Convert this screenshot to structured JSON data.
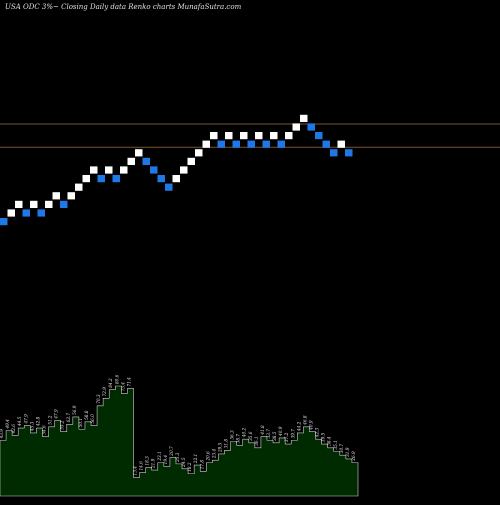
{
  "chart_data": {
    "type": "renko",
    "title": "USA ODC 3%~  Closing Daily data  Renko  charts MunafaSutra.com",
    "colors": {
      "background": "#000000",
      "up_brick": "#ffffff",
      "down_brick": "#1e78e6",
      "reference_line": "#7a5230",
      "volume_fill": "#002b00",
      "volume_edge": "#d0d0d0",
      "volume_text": "#e8e8e8"
    },
    "reference_lines": [
      {
        "name": "upper",
        "level": 12
      },
      {
        "name": "lower",
        "level": 10
      }
    ],
    "bricks": [
      {
        "dir": "down",
        "level": 1
      },
      {
        "dir": "up",
        "level": 2
      },
      {
        "dir": "up",
        "level": 3
      },
      {
        "dir": "down",
        "level": 2
      },
      {
        "dir": "up",
        "level": 3
      },
      {
        "dir": "down",
        "level": 2
      },
      {
        "dir": "up",
        "level": 3
      },
      {
        "dir": "up",
        "level": 4
      },
      {
        "dir": "down",
        "level": 3
      },
      {
        "dir": "up",
        "level": 4
      },
      {
        "dir": "up",
        "level": 5
      },
      {
        "dir": "up",
        "level": 6
      },
      {
        "dir": "up",
        "level": 7
      },
      {
        "dir": "down",
        "level": 6
      },
      {
        "dir": "up",
        "level": 7
      },
      {
        "dir": "down",
        "level": 6
      },
      {
        "dir": "up",
        "level": 7
      },
      {
        "dir": "up",
        "level": 8
      },
      {
        "dir": "up",
        "level": 9
      },
      {
        "dir": "down",
        "level": 8
      },
      {
        "dir": "down",
        "level": 7
      },
      {
        "dir": "down",
        "level": 6
      },
      {
        "dir": "down",
        "level": 5
      },
      {
        "dir": "up",
        "level": 6
      },
      {
        "dir": "up",
        "level": 7
      },
      {
        "dir": "up",
        "level": 8
      },
      {
        "dir": "up",
        "level": 9
      },
      {
        "dir": "up",
        "level": 10
      },
      {
        "dir": "up",
        "level": 11
      },
      {
        "dir": "down",
        "level": 10
      },
      {
        "dir": "up",
        "level": 11
      },
      {
        "dir": "down",
        "level": 10
      },
      {
        "dir": "up",
        "level": 11
      },
      {
        "dir": "down",
        "level": 10
      },
      {
        "dir": "up",
        "level": 11
      },
      {
        "dir": "down",
        "level": 10
      },
      {
        "dir": "up",
        "level": 11
      },
      {
        "dir": "down",
        "level": 10
      },
      {
        "dir": "up",
        "level": 11
      },
      {
        "dir": "up",
        "level": 12
      },
      {
        "dir": "up",
        "level": 13
      },
      {
        "dir": "down",
        "level": 12
      },
      {
        "dir": "down",
        "level": 11
      },
      {
        "dir": "down",
        "level": 10
      },
      {
        "dir": "down",
        "level": 9
      },
      {
        "dir": "up",
        "level": 10
      },
      {
        "dir": "down",
        "level": 9
      }
    ],
    "volume": {
      "values": [
        45,
        53,
        49,
        55,
        57,
        51,
        55,
        48,
        56,
        61,
        52,
        58,
        64,
        54,
        60,
        57,
        73,
        79,
        86,
        89,
        83,
        87,
        15,
        19,
        23,
        21,
        27,
        24,
        31,
        26,
        22,
        18,
        25,
        20,
        27,
        29,
        34,
        37,
        44,
        41,
        46,
        43,
        39,
        48,
        45,
        43,
        47,
        42,
        45,
        51,
        56,
        52,
        46,
        42,
        39,
        36,
        33,
        30,
        27
      ],
      "labels": [
        "43.9",
        "49.4",
        "42.6",
        "44.5",
        "47.9",
        "45.3",
        "42.8",
        "54.6",
        "51.2",
        "47.9",
        "55.2",
        "62.7",
        "56.9",
        "50.1",
        "58.8",
        "56.0",
        "70.3",
        "72.9",
        "84.2",
        "80.6",
        "73.4",
        "71.4",
        "13.4",
        "14.6",
        "18.3",
        "21.9",
        "23.1",
        "19.4",
        "20.7",
        "25.3",
        "24.5",
        "18.2",
        "22.1",
        "17.8",
        "20.6",
        "23.4",
        "29.5",
        "31.8",
        "36.3",
        "38.7",
        "40.2",
        "35.6",
        "36.1",
        "41.8",
        "33.7",
        "38.5",
        "40.9",
        "37.2",
        "39.7",
        "44.2",
        "46.8",
        "40.9",
        "42.3",
        "39.5",
        "38.4",
        "35.1",
        "30.7",
        "31.9",
        "26.9"
      ]
    }
  }
}
